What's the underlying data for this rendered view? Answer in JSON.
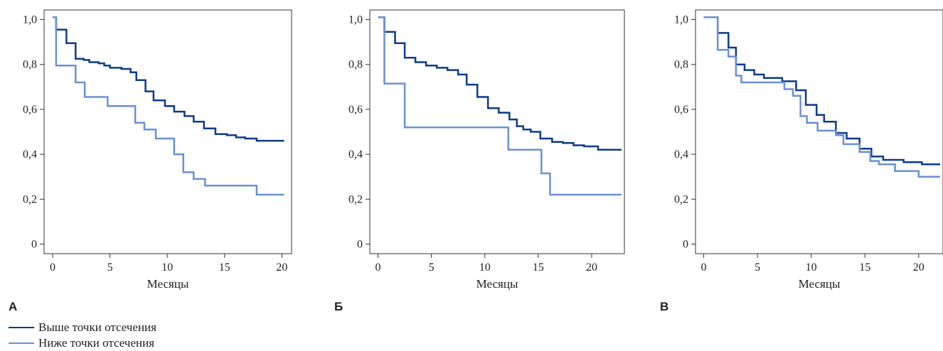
{
  "legend": {
    "above_label": "Выше точки отсечения",
    "below_label": "Ниже точки отсечения",
    "above_color": "#0d3a8a",
    "below_color": "#6b8fd6"
  },
  "chart_data": [
    {
      "type": "line",
      "step": true,
      "panel_label": "А",
      "xlabel": "Месяцы",
      "xticks": [
        0,
        5,
        10,
        15,
        20
      ],
      "yticks": [
        0,
        0.2,
        0.4,
        0.6,
        0.8,
        1.0
      ],
      "ytick_labels": [
        "0",
        "0,2",
        "0,4",
        "0,6",
        "0,8",
        "1,0"
      ],
      "xlim": [
        -0.5,
        20.6
      ],
      "ylim": [
        -0.03,
        1.03
      ],
      "series": [
        {
          "name": "Выше точки отсечения",
          "color": "#0d3a8a",
          "x": [
            0,
            0.3,
            1.2,
            2.0,
            2.7,
            3.2,
            4.0,
            4.5,
            5.0,
            6.0,
            6.8,
            7.3,
            8.1,
            8.8,
            9.8,
            10.6,
            11.5,
            12.3,
            13.2,
            14.2,
            15.2,
            16.0,
            16.8,
            17.8,
            20.2
          ],
          "y": [
            1.01,
            0.955,
            0.895,
            0.825,
            0.82,
            0.81,
            0.805,
            0.795,
            0.785,
            0.78,
            0.765,
            0.73,
            0.68,
            0.64,
            0.615,
            0.59,
            0.57,
            0.545,
            0.515,
            0.49,
            0.485,
            0.475,
            0.47,
            0.46,
            0.46
          ]
        },
        {
          "name": "Ниже точки отсечения",
          "color": "#6b8fd6",
          "x": [
            0,
            0.3,
            2.0,
            2.8,
            4.8,
            7.2,
            8.0,
            9.0,
            10.6,
            11.4,
            12.3,
            13.3,
            17.8,
            20.2
          ],
          "y": [
            1.01,
            0.795,
            0.72,
            0.655,
            0.615,
            0.54,
            0.51,
            0.47,
            0.4,
            0.32,
            0.29,
            0.26,
            0.22,
            0.22
          ]
        }
      ]
    },
    {
      "type": "line",
      "step": true,
      "panel_label": "Б",
      "xlabel": "Месяцы",
      "xticks": [
        0,
        5,
        10,
        15,
        20
      ],
      "yticks": [
        0,
        0.2,
        0.4,
        0.6,
        0.8,
        1.0
      ],
      "ytick_labels": [
        "0",
        "0,2",
        "0,4",
        "0,6",
        "0,8",
        "1,0"
      ],
      "xlim": [
        -0.5,
        22.8
      ],
      "ylim": [
        -0.03,
        1.03
      ],
      "series": [
        {
          "name": "Выше точки отсечения",
          "color": "#0d3a8a",
          "x": [
            0,
            0.6,
            1.6,
            2.5,
            3.5,
            4.5,
            5.5,
            6.5,
            7.5,
            8.3,
            9.3,
            10.3,
            11.3,
            12.3,
            13.0,
            13.6,
            14.3,
            15.2,
            16.3,
            17.3,
            18.3,
            19.3,
            20.6,
            22.8
          ],
          "y": [
            1.01,
            0.945,
            0.895,
            0.83,
            0.81,
            0.795,
            0.785,
            0.775,
            0.755,
            0.71,
            0.655,
            0.605,
            0.585,
            0.555,
            0.525,
            0.51,
            0.5,
            0.47,
            0.455,
            0.45,
            0.44,
            0.435,
            0.42,
            0.42
          ]
        },
        {
          "name": "Ниже точки отсечения",
          "color": "#6b8fd6",
          "x": [
            0,
            0.6,
            2.5,
            12.2,
            15.3,
            16.1,
            22.8
          ],
          "y": [
            1.01,
            0.715,
            0.52,
            0.42,
            0.315,
            0.22,
            0.22
          ]
        }
      ]
    },
    {
      "type": "line",
      "step": true,
      "panel_label": "В",
      "xlabel": "Месяцы",
      "xticks": [
        0,
        5,
        10,
        15,
        20
      ],
      "yticks": [
        0,
        0.2,
        0.4,
        0.6,
        0.8,
        1.0
      ],
      "ytick_labels": [
        "0",
        "0,2",
        "0,4",
        "0,6",
        "0,8",
        "1,0"
      ],
      "xlim": [
        -0.5,
        22.0
      ],
      "ylim": [
        -0.03,
        1.03
      ],
      "series": [
        {
          "name": "Выше точки отсечения",
          "color": "#0d3a8a",
          "x": [
            0,
            1.3,
            2.3,
            3.0,
            3.8,
            4.7,
            5.6,
            7.3,
            8.6,
            9.5,
            10.5,
            11.2,
            12.3,
            13.3,
            14.5,
            15.6,
            16.7,
            18.6,
            20.3,
            22.0
          ],
          "y": [
            1.01,
            0.94,
            0.875,
            0.8,
            0.775,
            0.755,
            0.74,
            0.725,
            0.685,
            0.62,
            0.575,
            0.545,
            0.495,
            0.47,
            0.425,
            0.39,
            0.375,
            0.365,
            0.355,
            0.355
          ]
        },
        {
          "name": "Ниже точки отсечения",
          "color": "#6b8fd6",
          "x": [
            0,
            1.3,
            2.3,
            3.0,
            3.5,
            5.3,
            7.5,
            8.3,
            9.0,
            9.6,
            10.6,
            12.3,
            13.0,
            14.5,
            15.5,
            16.3,
            17.8,
            20.0,
            22.0
          ],
          "y": [
            1.01,
            0.865,
            0.835,
            0.75,
            0.72,
            0.72,
            0.69,
            0.66,
            0.57,
            0.54,
            0.505,
            0.485,
            0.445,
            0.41,
            0.37,
            0.355,
            0.325,
            0.3,
            0.3
          ]
        }
      ]
    }
  ]
}
